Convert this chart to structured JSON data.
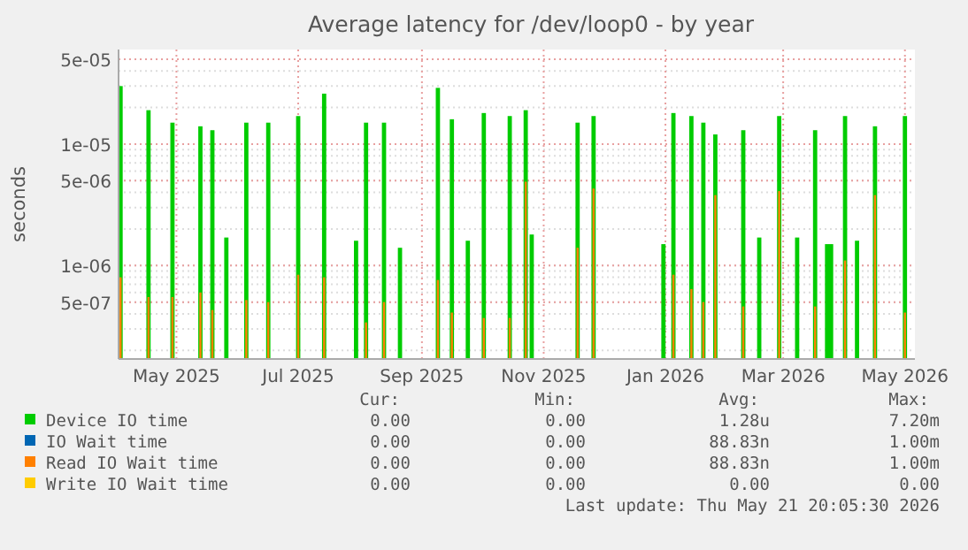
{
  "chart_data": {
    "type": "bar",
    "title": "Average latency for /dev/loop0 - by year",
    "ylabel": "seconds",
    "log": true,
    "grid": true,
    "legend": "bottom",
    "xlim": [
      "2025-04-17",
      "2026-05-21"
    ],
    "xticks": [
      {
        "value": "2025-05-16",
        "label": "May 2025"
      },
      {
        "value": "2025-07-16",
        "label": "Jul 2025"
      },
      {
        "value": "2025-09-16",
        "label": "Sep 2025"
      },
      {
        "value": "2025-11-16",
        "label": "Nov 2025"
      },
      {
        "value": "2026-01-16",
        "label": "Jan 2026"
      },
      {
        "value": "2026-03-16",
        "label": "Mar 2026"
      },
      {
        "value": "2026-05-16",
        "label": "May 2026"
      }
    ],
    "ylim": [
      1.7e-07,
      6e-05
    ],
    "yticks": [
      {
        "value": 5e-07,
        "label": "5e-07"
      },
      {
        "value": 1e-06,
        "label": "1e-06"
      },
      {
        "value": 5e-06,
        "label": "5e-06"
      },
      {
        "value": 1e-05,
        "label": "1e-05"
      },
      {
        "value": 5e-05,
        "label": "5e-05"
      }
    ],
    "series": [
      {
        "name": "Device IO time",
        "color": "#00cc00",
        "x": [
          "2025-04-18",
          "2025-05-02",
          "2025-05-14",
          "2025-05-28",
          "2025-06-03",
          "2025-06-10",
          "2025-06-20",
          "2025-07-01",
          "2025-07-16",
          "2025-07-29",
          "2025-08-14",
          "2025-08-19",
          "2025-08-28",
          "2025-09-05",
          "2025-09-24",
          "2025-10-01",
          "2025-10-09",
          "2025-10-17",
          "2025-10-30",
          "2025-11-07",
          "2025-11-10",
          "2025-12-03",
          "2025-12-11",
          "2026-01-15",
          "2026-01-20",
          "2026-01-29",
          "2026-02-04",
          "2026-02-10",
          "2026-02-24",
          "2026-03-04",
          "2026-03-14",
          "2026-03-23",
          "2026-04-01",
          "2026-04-07",
          "2026-04-09",
          "2026-04-16",
          "2026-04-22",
          "2026-05-01",
          "2026-05-16"
        ],
        "values": [
          3e-05,
          1.9e-05,
          1.5e-05,
          1.4e-05,
          1.3e-05,
          1.7e-06,
          1.5e-05,
          1.5e-05,
          1.7e-05,
          2.6e-05,
          1.6e-06,
          1.5e-05,
          1.5e-05,
          1.4e-06,
          2.9e-05,
          1.6e-05,
          1.6e-06,
          1.8e-05,
          1.7e-05,
          1.9e-05,
          1.8e-06,
          1.5e-05,
          1.7e-05,
          1.5e-06,
          1.8e-05,
          1.7e-05,
          1.5e-05,
          1.2e-05,
          1.3e-05,
          1.7e-06,
          1.7e-05,
          1.7e-06,
          1.3e-05,
          1.5e-06,
          1.5e-06,
          1.7e-05,
          1.6e-06,
          1.4e-05,
          1.7e-05
        ]
      },
      {
        "name": "IO Wait time",
        "color": "#0066b3"
      },
      {
        "name": "Read IO Wait time",
        "color": "#ff8000",
        "x": [
          "2025-04-18",
          "2025-05-02",
          "2025-05-14",
          "2025-05-28",
          "2025-06-03",
          "2025-06-20",
          "2025-07-01",
          "2025-07-16",
          "2025-07-29",
          "2025-08-19",
          "2025-08-28",
          "2025-09-24",
          "2025-10-01",
          "2025-10-17",
          "2025-10-30",
          "2025-11-07",
          "2025-12-03",
          "2025-12-11",
          "2026-01-20",
          "2026-01-29",
          "2026-02-04",
          "2026-02-10",
          "2026-02-24",
          "2026-03-14",
          "2026-04-01",
          "2026-04-16",
          "2026-05-01",
          "2026-05-16"
        ],
        "values": [
          8e-07,
          5.5e-07,
          5.5e-07,
          6e-07,
          4.3e-07,
          5.2e-07,
          5e-07,
          8.4e-07,
          8e-07,
          3.4e-07,
          5e-07,
          7.6e-07,
          4.1e-07,
          3.7e-07,
          3.7e-07,
          4.9e-06,
          1.4e-06,
          4.3e-06,
          8.4e-07,
          6.4e-07,
          5e-07,
          3.8e-06,
          4.6e-07,
          4.1e-06,
          4.6e-07,
          1.1e-06,
          3.8e-06,
          4.1e-07
        ]
      },
      {
        "name": "Write IO Wait time",
        "color": "#ffcc00"
      }
    ],
    "annotations": [
      "Cur:",
      "Min:",
      "Avg:",
      "Max:",
      "0.00",
      "0.00",
      "1.28u",
      "7.20m",
      "0.00",
      "0.00",
      "88.83n",
      "1.00m",
      "0.00",
      "0.00",
      "88.83n",
      "1.00m",
      "0.00",
      "0.00",
      "0.00",
      "0.00",
      "Last update: Thu May 21 20:05:30 2026"
    ]
  }
}
